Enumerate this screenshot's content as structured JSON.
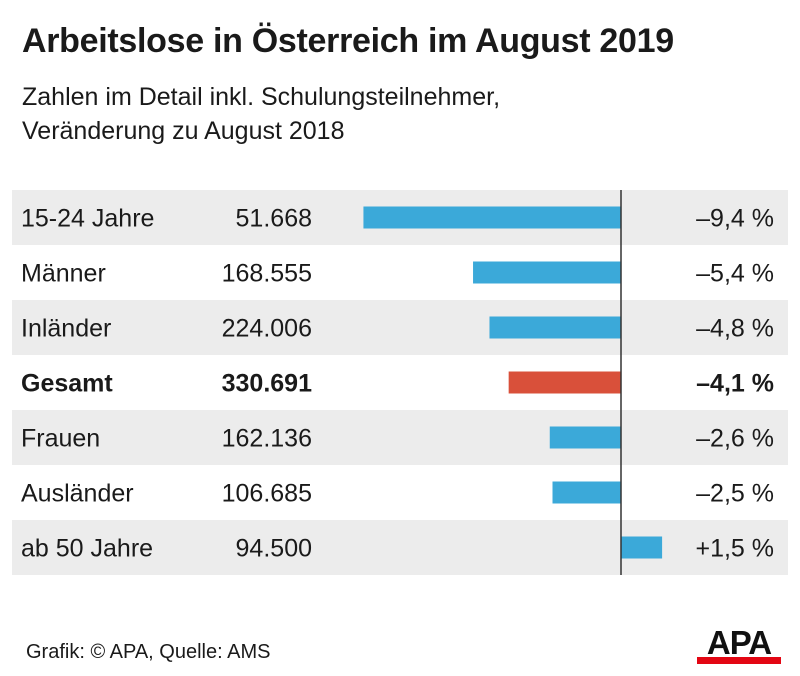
{
  "header": {
    "title": "Arbeitslose in Österreich im August 2019",
    "subtitle_line1": "Zahlen im Detail inkl. Schulungsteilnehmer,",
    "subtitle_line2": "Veränderung zu August 2018"
  },
  "chart_data": {
    "type": "bar",
    "orientation": "horizontal",
    "categories": [
      "15-24 Jahre",
      "Männer",
      "Inländer",
      "Gesamt",
      "Frauen",
      "Ausländer",
      "ab 50 Jahre"
    ],
    "counts": [
      "51.668",
      "168.555",
      "224.006",
      "330.691",
      "162.136",
      "106.685",
      "94.500"
    ],
    "values": [
      -9.4,
      -5.4,
      -4.8,
      -4.1,
      -2.6,
      -2.5,
      1.5
    ],
    "value_labels": [
      "–9,4 %",
      "–5,4 %",
      "–4,8 %",
      "–4,1 %",
      "–2,6 %",
      "–2,5 %",
      "+1,5 %"
    ],
    "highlight_index": 3,
    "colors": {
      "bar": "#3ba9d9",
      "highlight": "#d9503a",
      "row_shade": "#ececec",
      "axis": "#333333"
    },
    "xlim": [
      -10,
      3
    ]
  },
  "footer": {
    "credit": "Grafik: © APA, Quelle: AMS"
  },
  "logo": {
    "text": "APA",
    "color": "#e30613"
  }
}
